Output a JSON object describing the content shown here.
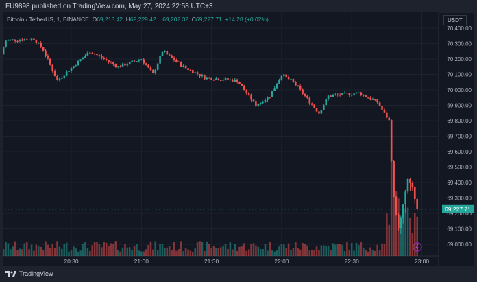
{
  "header": {
    "published": "FU9898 published on TradingView.com, May 27, 2024 22:58 UTC+3"
  },
  "legend": {
    "symbol": "Bitcoin / TetherUS, 1, BINANCE",
    "o_label": "O",
    "o": "69,213.42",
    "h_label": "H",
    "h": "69,229.42",
    "l_label": "L",
    "l": "69,202.32",
    "c_label": "C",
    "c": "69,227.71",
    "change": "+14.28 (+0.02%)"
  },
  "currency_button": "USDT",
  "last_price_label": "69,227.71",
  "footer": {
    "brand": "TradingView"
  },
  "colors": {
    "up": "#26a69a",
    "down": "#ef5350",
    "background": "#131722",
    "last_price": "#26a69a"
  },
  "chart_data": {
    "type": "candlestick",
    "interval": "1 minute",
    "y_ticks": [
      "70,400.00",
      "70,300.00",
      "70,200.00",
      "70,100.00",
      "70,000.00",
      "69,900.00",
      "69,800.00",
      "69,700.00",
      "69,600.00",
      "69,500.00",
      "69,400.00",
      "69,300.00",
      "69,200.00",
      "69,100.00",
      "69,000.00"
    ],
    "y_tick_values": [
      70400,
      70300,
      70200,
      70100,
      70000,
      69900,
      69800,
      69700,
      69600,
      69500,
      69400,
      69300,
      69200,
      69100,
      69000
    ],
    "x_ticks": [
      "20:30",
      "21:00",
      "21:30",
      "22:00",
      "22:30",
      "23:00"
    ],
    "close_keypoints": [
      [
        "20:00",
        70230
      ],
      [
        "20:02",
        70320
      ],
      [
        "20:14",
        70330
      ],
      [
        "20:18",
        70260
      ],
      [
        "20:24",
        70060
      ],
      [
        "20:38",
        70250
      ],
      [
        "20:50",
        70150
      ],
      [
        "21:00",
        70200
      ],
      [
        "21:05",
        70100
      ],
      [
        "21:09",
        70250
      ],
      [
        "21:18",
        70150
      ],
      [
        "21:27",
        70080
      ],
      [
        "21:41",
        70060
      ],
      [
        "21:49",
        69900
      ],
      [
        "21:55",
        69960
      ],
      [
        "22:00",
        70100
      ],
      [
        "22:05",
        70050
      ],
      [
        "22:16",
        69850
      ],
      [
        "22:20",
        69960
      ],
      [
        "22:33",
        69980
      ],
      [
        "22:41",
        69920
      ],
      [
        "22:46",
        69800
      ],
      [
        "22:48",
        69300
      ],
      [
        "22:50",
        69100
      ],
      [
        "22:52",
        69250
      ],
      [
        "22:54",
        69420
      ],
      [
        "22:56",
        69380
      ],
      [
        "22:58",
        69227.71
      ]
    ],
    "grid": true
  }
}
